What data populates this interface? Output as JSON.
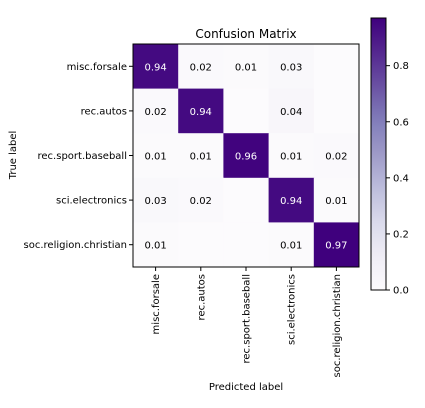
{
  "chart_data": {
    "type": "heatmap",
    "title": "Confusion Matrix",
    "xlabel": "Predicted label",
    "ylabel": "True label",
    "row_labels": [
      "misc.forsale",
      "rec.autos",
      "rec.sport.baseball",
      "sci.electronics",
      "soc.religion.christian"
    ],
    "col_labels": [
      "misc.forsale",
      "rec.autos",
      "rec.sport.baseball",
      "sci.electronics",
      "soc.religion.christian"
    ],
    "values": [
      [
        0.94,
        0.02,
        0.01,
        0.03,
        0.0
      ],
      [
        0.02,
        0.94,
        0.0,
        0.04,
        0.0
      ],
      [
        0.01,
        0.01,
        0.96,
        0.01,
        0.02
      ],
      [
        0.03,
        0.02,
        0.0,
        0.94,
        0.01
      ],
      [
        0.01,
        0.0,
        0.0,
        0.01,
        0.97
      ]
    ],
    "cell_labels": [
      [
        "0.94",
        "0.02",
        "0.01",
        "0.03",
        ""
      ],
      [
        "0.02",
        "0.94",
        "",
        "0.04",
        ""
      ],
      [
        "0.01",
        "0.01",
        "0.96",
        "0.01",
        "0.02"
      ],
      [
        "0.03",
        "0.02",
        "",
        "0.94",
        "0.01"
      ],
      [
        "0.01",
        "",
        "",
        "0.01",
        "0.97"
      ]
    ],
    "colormap": "Purples",
    "color_low": "#fcfbfd",
    "color_high": "#3f007d",
    "colorbar": {
      "range": [
        0.0,
        0.97
      ],
      "ticks": [
        0.0,
        0.2,
        0.4,
        0.6,
        0.8
      ],
      "tick_labels": [
        "0.0",
        "0.2",
        "0.4",
        "0.6",
        "0.8"
      ]
    },
    "grid": false
  }
}
